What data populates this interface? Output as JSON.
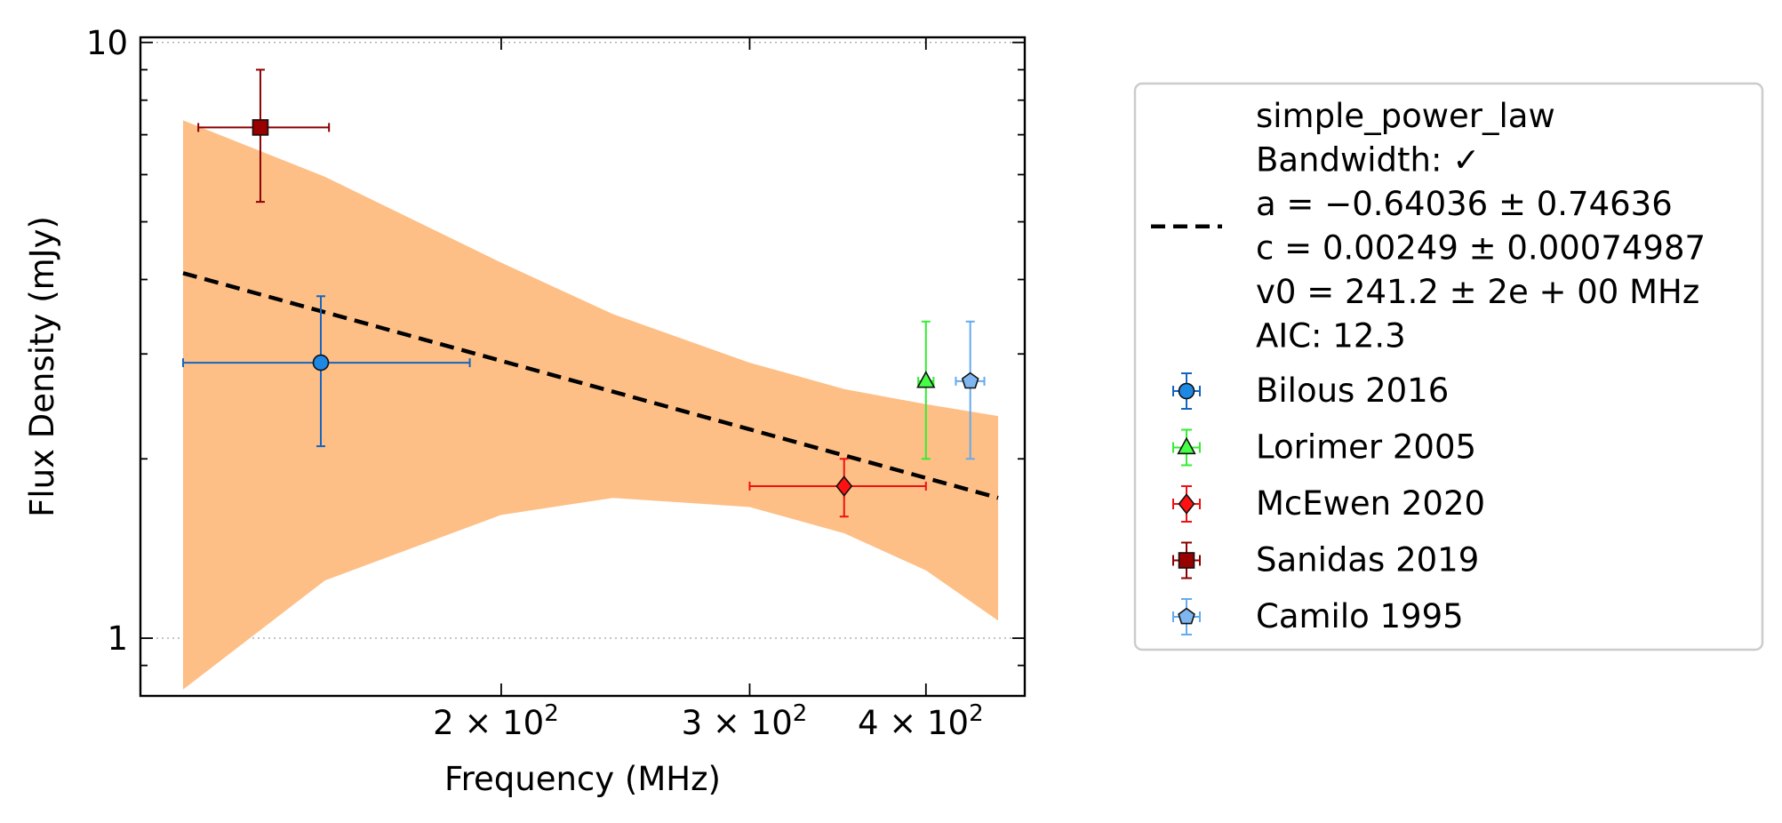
{
  "chart_data": {
    "type": "scatter",
    "xlabel": "Frequency (MHz)",
    "ylabel": "Flux Density (mJy)",
    "xscale": "log",
    "yscale": "log",
    "xlim": [
      111,
      470
    ],
    "ylim": [
      0.8,
      10.2
    ],
    "x_ticks": [
      {
        "value": 200,
        "mantissa": "2",
        "base": "10",
        "exp": "2"
      },
      {
        "value": 300,
        "mantissa": "3",
        "base": "10",
        "exp": "2"
      },
      {
        "value": 400,
        "mantissa": "4",
        "base": "10",
        "exp": "2"
      }
    ],
    "y_ticks": [
      {
        "value": 1,
        "label": "1"
      },
      {
        "value": 10,
        "label": "10"
      }
    ],
    "grid": "horizontal dotted at y ticks",
    "legend_placement": "outside right",
    "fit": {
      "name": "simple_power_law",
      "lines": [
        "simple_power_law",
        "Bandwidth: ✓",
        "a = −0.64036 ± 0.74636",
        "c = 0.00249 ± 0.00074987",
        "v0 = 241.2 ± 2e + 00 MHz",
        "AIC: 12.3"
      ],
      "line": {
        "x": [
          119,
          450
        ],
        "y": [
          4.1,
          1.72
        ]
      },
      "band": {
        "x": [
          119,
          150,
          200,
          240,
          300,
          350,
          400,
          450
        ],
        "upper": [
          7.4,
          5.95,
          4.27,
          3.5,
          2.9,
          2.62,
          2.47,
          2.36
        ],
        "lower": [
          0.82,
          1.25,
          1.61,
          1.72,
          1.66,
          1.5,
          1.3,
          1.07
        ]
      },
      "line_color": "#000000",
      "band_color": "#fdbf86"
    },
    "series": [
      {
        "name": "Bilous 2016",
        "marker": "circle",
        "color": "#1565c0",
        "fill": "#1e88e5",
        "x": 149,
        "y": 2.9,
        "xerr": [
          30,
          41
        ],
        "yerr": [
          0.8,
          0.85
        ]
      },
      {
        "name": "Lorimer 2005",
        "marker": "triangle",
        "color": "#33ee33",
        "fill": "#44ff44",
        "x": 400,
        "y": 2.7,
        "xerr": [
          5,
          5
        ],
        "yerr": [
          0.7,
          0.7
        ]
      },
      {
        "name": "McEwen 2020",
        "marker": "diamond",
        "color": "#ee1111",
        "fill": "#ff1111",
        "x": 350,
        "y": 1.8,
        "xerr": [
          50,
          50
        ],
        "yerr": [
          0.2,
          0.2
        ]
      },
      {
        "name": "Sanidas 2019",
        "marker": "square",
        "color": "#8b0000",
        "fill": "#990000",
        "x": 135,
        "y": 7.2,
        "xerr": [
          13,
          16
        ],
        "yerr": [
          1.8,
          1.8
        ]
      },
      {
        "name": "Camilo 1995",
        "marker": "pentagon",
        "color": "#66aaee",
        "fill": "#7fb6f0",
        "x": 430,
        "y": 2.7,
        "xerr": [
          10,
          10
        ],
        "yerr": [
          0.7,
          0.7
        ]
      }
    ]
  }
}
